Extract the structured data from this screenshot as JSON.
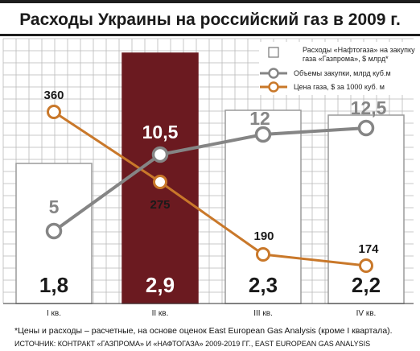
{
  "chart_data": {
    "type": "bar",
    "title": "Расходы Украины на российский газ в 2009 г.",
    "categories": [
      "I кв.",
      "II кв.",
      "III кв.",
      "IV кв."
    ],
    "series": [
      {
        "name": "Расходы «Нафтогаза» на закупку газа «Газпрома», $ млрд*",
        "type": "bar",
        "values": [
          1.8,
          2.9,
          2.3,
          2.2
        ],
        "labels": [
          "1,8",
          "2,9",
          "2,3",
          "2,2"
        ]
      },
      {
        "name": "Объемы закупки, млрд куб.м",
        "type": "line",
        "values": [
          5,
          10.5,
          12,
          12.5
        ],
        "labels": [
          "5",
          "10,5",
          "12",
          "12,5"
        ]
      },
      {
        "name": "Цена газа, $ за 1000 куб. м",
        "type": "line",
        "values": [
          360,
          275,
          190,
          174
        ],
        "labels": [
          "360",
          "275",
          "190",
          "174"
        ]
      }
    ],
    "highlight_category": "II кв.",
    "legend_position": "top-right",
    "grid": true,
    "colors": {
      "bar": "#ffffff",
      "bar_highlight": "#6b1a20",
      "bar_edge": "#9a9a9a",
      "volume_line": "#858585",
      "price_line": "#c9782a",
      "grid": "#b9b9b9",
      "title_bar": "#1e1e1e"
    },
    "footnote": "*Цены и расходы – расчетные, на основе оценок East European Gas Analysis (кроме I квартала).",
    "source": "ИСТОЧНИК: КОНТРАКТ «ГАЗПРОМА» И «НАФТОГАЗА» 2009-2019 ГГ., EAST EUROPEAN GAS ANALYSIS"
  }
}
